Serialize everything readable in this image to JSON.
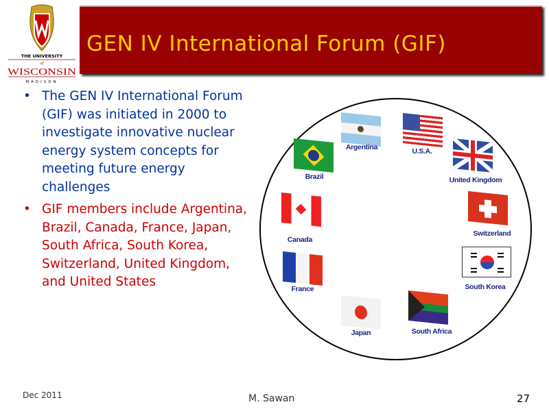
{
  "logo": {
    "line1": "THE UNIVERSITY",
    "line2": "of",
    "line3": "WISCONSIN",
    "line4": "MADISON"
  },
  "title": "GEN IV International Forum (GIF)",
  "bullets": [
    "The GEN IV International Forum (GIF) was initiated in 2000 to investigate innovative nuclear energy system concepts for meeting future energy challenges",
    "GIF members include Argentina, Brazil, Canada, France, Japan, South Africa, South Korea, Switzerland, United Kingdom, and United States"
  ],
  "flags": [
    {
      "label": "Argentina",
      "icon": "argentina-flag-icon"
    },
    {
      "label": "U.S.A.",
      "icon": "usa-flag-icon"
    },
    {
      "label": "Brazil",
      "icon": "brazil-flag-icon"
    },
    {
      "label": "United Kingdom",
      "icon": "uk-flag-icon"
    },
    {
      "label": "Canada",
      "icon": "canada-flag-icon"
    },
    {
      "label": "Switzerland",
      "icon": "switzerland-flag-icon"
    },
    {
      "label": "South Korea",
      "icon": "south-korea-flag-icon"
    },
    {
      "label": "France",
      "icon": "france-flag-icon"
    },
    {
      "label": "Japan",
      "icon": "japan-flag-icon"
    },
    {
      "label": "South Africa",
      "icon": "south-africa-flag-icon"
    }
  ],
  "footer": {
    "date": "Dec 2011",
    "author": "M. Sawan",
    "page": "27"
  },
  "colors": {
    "banner": "#990000",
    "title": "#ffcc00",
    "bullet1": "#003399",
    "bullet2": "#cc0000"
  }
}
